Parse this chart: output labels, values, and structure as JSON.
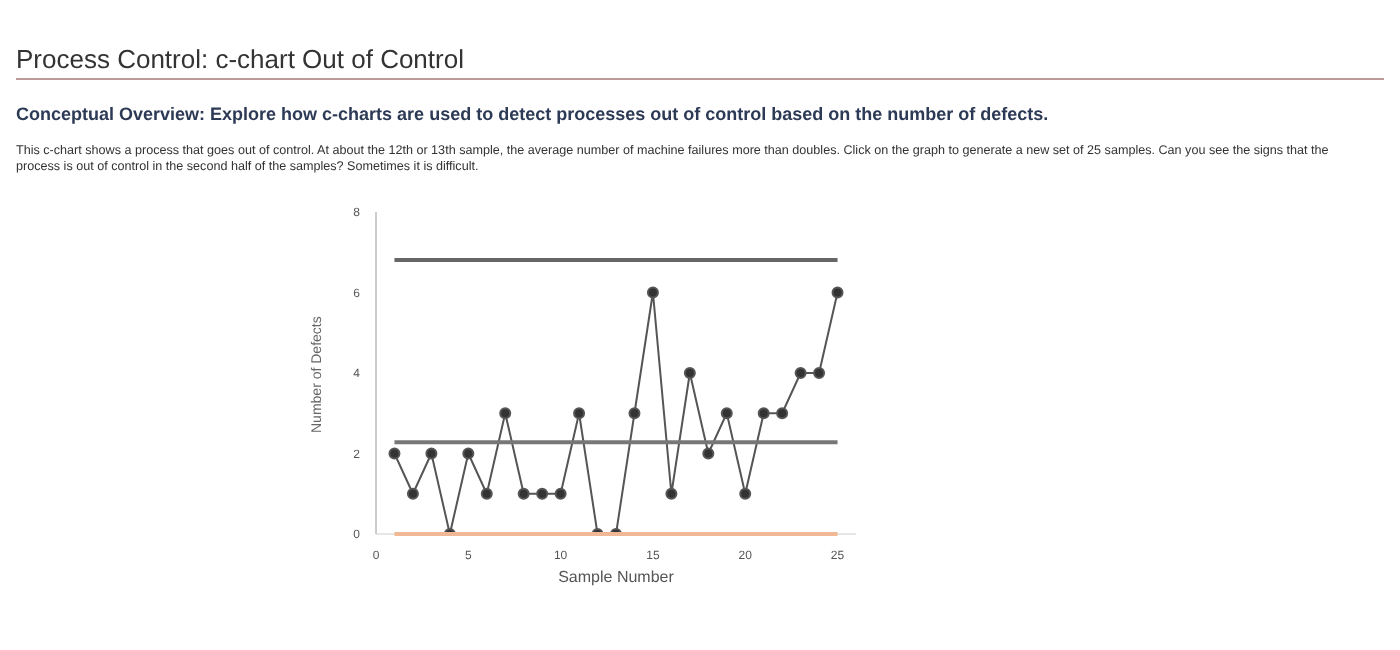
{
  "chart_data": {
    "type": "line",
    "title": "Process Control: c-chart Out of Control",
    "subtitle": "Conceptual Overview: Explore how c-charts are used to detect processes out of control based on the number of defects.",
    "annotations": [
      "This c-chart shows a process that goes out of control. At about the 12th or 13th sample, the average number of machine failures more than doubles. Click on the graph to generate a new set of 25 samples. Can you see the signs that the process is out of control in the second half of the samples? Sometimes it is difficult."
    ],
    "xlabel": "Sample Number",
    "ylabel": "Number of Defects",
    "x": [
      1,
      2,
      3,
      4,
      5,
      6,
      7,
      8,
      9,
      10,
      11,
      12,
      13,
      14,
      15,
      16,
      17,
      18,
      19,
      20,
      21,
      22,
      23,
      24,
      25
    ],
    "series": [
      {
        "color": "#555555",
        "values": [
          2,
          1,
          2,
          0,
          2,
          1,
          3,
          1,
          1,
          1,
          3,
          0,
          0,
          3,
          6,
          1,
          4,
          2,
          3,
          1,
          3,
          3,
          4,
          4,
          6
        ]
      }
    ],
    "xlim": [
      0,
      26
    ],
    "xticks": [
      0,
      5,
      10,
      15,
      20,
      25
    ],
    "ylim": [
      0,
      8
    ],
    "yticks": [
      0,
      2,
      4,
      6,
      8
    ],
    "ref_lines": [
      {
        "axis": "y",
        "value": 6.81,
        "color": "#666666"
      },
      {
        "axis": "y",
        "value": 2.28,
        "color": "#777777"
      },
      {
        "axis": "y",
        "value": 0,
        "color": "#f0b894"
      }
    ],
    "grid": false,
    "legend": false,
    "marker": "circle",
    "line_style": "solid"
  }
}
